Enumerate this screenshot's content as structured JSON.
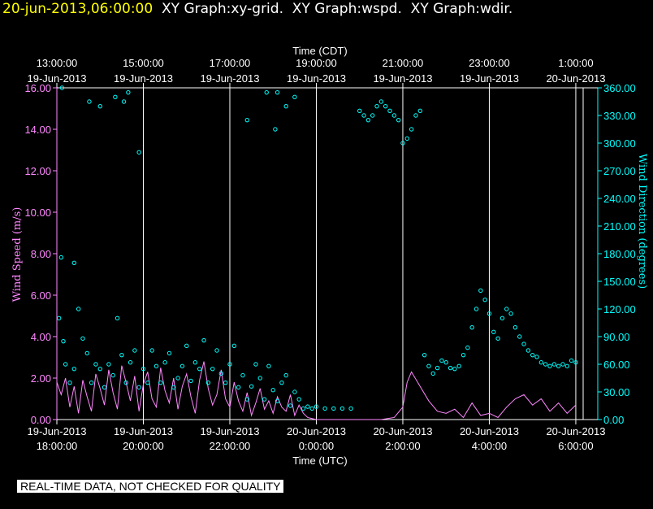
{
  "header": {
    "timestamp": "20-jun-2013,06:00:00",
    "graphs": [
      "XY Graph:xy-grid.",
      "XY Graph:wspd.",
      "XY Graph:wdir."
    ]
  },
  "disclaimer": "REAL-TIME DATA, NOT CHECKED FOR QUALITY",
  "colors": {
    "axis": "#ffffff",
    "speed": "#ff88ff",
    "direction": "#00ffff",
    "header": "#ffff00"
  },
  "chart_data": {
    "type": "line",
    "x_axis": {
      "top_title": "Time (CDT)",
      "bottom_title": "Time (UTC)",
      "range_hours": [
        0,
        12.17
      ],
      "ticks_hours": [
        0,
        2,
        4,
        6,
        8,
        10,
        12
      ],
      "top_labels": [
        [
          "13:00:00",
          "19-Jun-2013"
        ],
        [
          "15:00:00",
          "19-Jun-2013"
        ],
        [
          "17:00:00",
          "19-Jun-2013"
        ],
        [
          "19:00:00",
          "19-Jun-2013"
        ],
        [
          "21:00:00",
          "19-Jun-2013"
        ],
        [
          "23:00:00",
          "19-Jun-2013"
        ],
        [
          "1:00:00",
          "20-Jun-2013"
        ]
      ],
      "bottom_labels": [
        [
          "19-Jun-2013",
          "18:00:00"
        ],
        [
          "19-Jun-2013",
          "20:00:00"
        ],
        [
          "19-Jun-2013",
          "22:00:00"
        ],
        [
          "20-Jun-2013",
          "0:00:00"
        ],
        [
          "20-Jun-2013",
          "2:00:00"
        ],
        [
          "20-Jun-2013",
          "4:00:00"
        ],
        [
          "20-Jun-2013",
          "6:00:00"
        ]
      ]
    },
    "y_left": {
      "label": "Wind Speed (m/s)",
      "range": [
        0,
        16
      ],
      "ticks": [
        "0.00",
        "2.00",
        "4.00",
        "6.00",
        "8.00",
        "10.00",
        "12.00",
        "14.00",
        "16.00"
      ]
    },
    "y_right": {
      "label": "Wind Direction (degrees)",
      "range": [
        0,
        360
      ],
      "ticks": [
        "0.00",
        "30.00",
        "60.00",
        "90.00",
        "120.00",
        "150.00",
        "180.00",
        "210.00",
        "240.00",
        "270.00",
        "300.00",
        "330.00",
        "360.00"
      ]
    },
    "series": [
      {
        "name": "wspd",
        "axis": "left",
        "x": [
          0,
          0.1,
          0.2,
          0.3,
          0.4,
          0.5,
          0.6,
          0.7,
          0.8,
          0.9,
          1.0,
          1.1,
          1.2,
          1.3,
          1.4,
          1.5,
          1.6,
          1.7,
          1.8,
          1.9,
          2.0,
          2.1,
          2.2,
          2.3,
          2.4,
          2.5,
          2.6,
          2.7,
          2.8,
          2.9,
          3.0,
          3.1,
          3.2,
          3.3,
          3.4,
          3.5,
          3.6,
          3.7,
          3.8,
          3.9,
          4.0,
          4.1,
          4.2,
          4.3,
          4.4,
          4.5,
          4.6,
          4.7,
          4.8,
          4.9,
          5.0,
          5.1,
          5.2,
          5.3,
          5.4,
          5.5,
          5.6,
          5.7,
          5.8,
          5.9,
          6.0,
          6.5,
          7.0,
          7.5,
          7.8,
          8.0,
          8.1,
          8.2,
          8.4,
          8.6,
          8.8,
          9.0,
          9.2,
          9.4,
          9.6,
          9.8,
          10.0,
          10.2,
          10.4,
          10.6,
          10.8,
          11.0,
          11.2,
          11.4,
          11.6,
          11.8,
          12.0
        ],
        "values": [
          1.8,
          1.2,
          2.0,
          0.6,
          1.6,
          0.3,
          1.9,
          1.1,
          0.4,
          2.2,
          1.5,
          0.7,
          2.4,
          1.3,
          0.5,
          2.6,
          1.8,
          0.9,
          2.1,
          0.4,
          1.7,
          2.3,
          1.0,
          0.6,
          2.5,
          1.4,
          0.8,
          2.0,
          0.5,
          1.6,
          2.2,
          1.1,
          0.3,
          1.9,
          2.8,
          1.5,
          0.7,
          1.2,
          2.4,
          1.0,
          0.6,
          1.8,
          0.9,
          0.4,
          1.3,
          0.2,
          0.8,
          1.5,
          0.5,
          0.9,
          0.3,
          1.1,
          0.6,
          0.4,
          1.2,
          0.2,
          0.7,
          0.3,
          0.1,
          0.05,
          0.0,
          0.0,
          0.0,
          0.0,
          0.1,
          0.6,
          1.8,
          2.3,
          1.6,
          0.9,
          0.4,
          0.3,
          0.5,
          0.1,
          0.8,
          0.2,
          0.3,
          0.1,
          0.6,
          1.0,
          1.2,
          0.7,
          1.0,
          0.4,
          0.8,
          0.3,
          0.7
        ]
      },
      {
        "name": "wdir",
        "axis": "right",
        "x": [
          0.05,
          0.1,
          0.15,
          0.2,
          0.3,
          0.4,
          0.5,
          0.6,
          0.7,
          0.8,
          0.9,
          1.0,
          1.1,
          1.2,
          1.3,
          1.4,
          1.5,
          1.6,
          1.7,
          1.8,
          1.9,
          2.0,
          2.1,
          2.2,
          2.3,
          2.4,
          2.5,
          2.6,
          2.7,
          2.8,
          2.9,
          3.0,
          3.1,
          3.2,
          3.3,
          3.4,
          3.5,
          3.6,
          3.7,
          3.8,
          3.9,
          4.0,
          4.1,
          4.2,
          4.3,
          4.4,
          4.5,
          4.6,
          4.7,
          4.8,
          4.9,
          5.0,
          5.1,
          5.2,
          5.3,
          5.4,
          5.5,
          5.6,
          5.7,
          5.8,
          5.9,
          6.0,
          6.2,
          6.4,
          6.6,
          6.8,
          7.0,
          7.1,
          7.2,
          7.3,
          7.4,
          7.5,
          7.6,
          7.7,
          7.8,
          7.9,
          8.0,
          8.1,
          8.2,
          8.3,
          8.4,
          8.5,
          8.6,
          8.7,
          8.8,
          8.9,
          9.0,
          9.1,
          9.2,
          9.3,
          9.4,
          9.5,
          9.6,
          9.7,
          9.8,
          9.9,
          10.0,
          10.1,
          10.2,
          10.3,
          10.4,
          10.5,
          10.6,
          10.7,
          10.8,
          10.9,
          11.0,
          11.1,
          11.2,
          11.3,
          11.4,
          11.5,
          11.6,
          11.7,
          11.8,
          11.9,
          12.0,
          0.12,
          0.4,
          0.75,
          1.0,
          1.35,
          1.55,
          1.65,
          1.9,
          4.4,
          4.85,
          5.1,
          5.5,
          5.3,
          5.05
        ],
        "values": [
          110,
          176,
          85,
          60,
          40,
          55,
          120,
          88,
          72,
          40,
          60,
          55,
          35,
          60,
          48,
          110,
          70,
          40,
          62,
          75,
          35,
          55,
          40,
          75,
          58,
          40,
          62,
          72,
          35,
          45,
          58,
          80,
          42,
          62,
          55,
          86,
          40,
          55,
          75,
          50,
          40,
          60,
          80,
          35,
          48,
          22,
          36,
          60,
          45,
          22,
          58,
          32,
          20,
          40,
          48,
          15,
          30,
          22,
          12,
          14,
          12,
          14,
          12,
          12,
          12,
          12,
          335,
          330,
          325,
          330,
          340,
          345,
          340,
          335,
          330,
          325,
          300,
          305,
          315,
          330,
          335,
          70,
          58,
          50,
          56,
          64,
          62,
          56,
          55,
          58,
          70,
          78,
          100,
          120,
          140,
          130,
          115,
          95,
          88,
          110,
          120,
          115,
          100,
          90,
          82,
          75,
          70,
          68,
          62,
          60,
          58,
          60,
          58,
          60,
          58,
          64,
          62,
          360,
          170,
          345,
          340,
          350,
          345,
          355,
          290,
          325,
          355,
          355,
          350,
          340,
          315
        ]
      }
    ]
  }
}
